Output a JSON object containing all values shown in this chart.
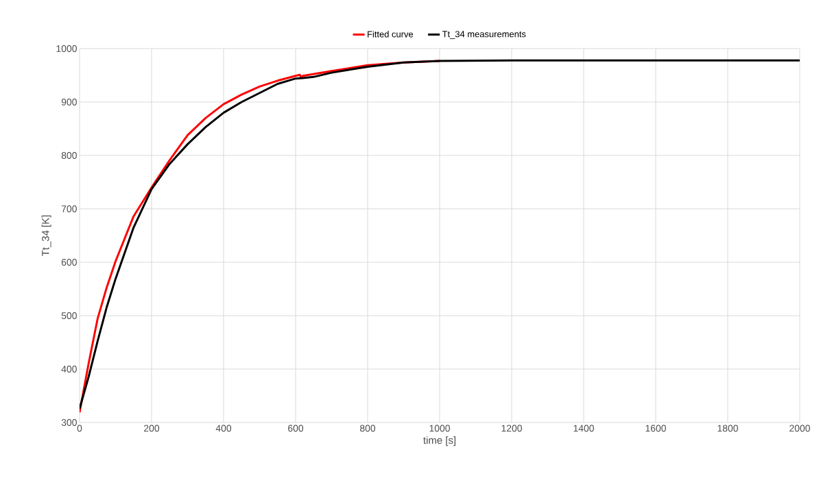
{
  "chart_data": {
    "type": "line",
    "xlabel": "time [s]",
    "ylabel": "Tt_34 [K]",
    "xlim": [
      0,
      2000
    ],
    "xticks": [
      0,
      200,
      400,
      600,
      800,
      1000,
      1200,
      1400,
      1600,
      1800,
      2000
    ],
    "ylim": [
      300,
      1000
    ],
    "yticks": [
      300,
      400,
      500,
      600,
      700,
      800,
      900,
      1000
    ],
    "grid": true,
    "legend": "top",
    "marker": "none",
    "line_style": "solid",
    "series": [
      {
        "name": "Fitted curve",
        "color": "#ff0000",
        "x": [
          0,
          25,
          50,
          75,
          100,
          150,
          200,
          250,
          300,
          350,
          400,
          450,
          500,
          550,
          600,
          612,
          615,
          620,
          700,
          800,
          900,
          1000
        ],
        "values": [
          319,
          410,
          494,
          552,
          602,
          686,
          740,
          791,
          838,
          870,
          896,
          914,
          929,
          940,
          949,
          951,
          946,
          949,
          958,
          969,
          974,
          977
        ]
      },
      {
        "name": "Tt_34 measurements",
        "color": "#000000",
        "x": [
          0,
          25,
          50,
          75,
          100,
          150,
          200,
          250,
          300,
          350,
          400,
          450,
          500,
          550,
          600,
          620,
          650,
          700,
          800,
          900,
          1000,
          1200,
          1500,
          2000
        ],
        "values": [
          326,
          385,
          452,
          515,
          569,
          665,
          737,
          784,
          821,
          853,
          880,
          900,
          917,
          934,
          944,
          945,
          947,
          955,
          966,
          974,
          977,
          978,
          978,
          978
        ]
      }
    ]
  }
}
